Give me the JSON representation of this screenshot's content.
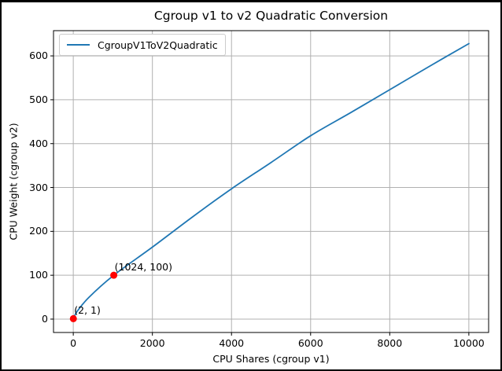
{
  "window": {
    "background": "#ffffff",
    "border_color": "#000000"
  },
  "chart_data": {
    "type": "line",
    "title": "Cgroup v1 to v2 Quadratic Conversion",
    "xlabel": "CPU Shares (cgroup v1)",
    "ylabel": "CPU Weight (cgroup v2)",
    "xlim": [
      -500,
      10500
    ],
    "ylim": [
      -30.5,
      657.5
    ],
    "xticks": [
      0,
      2000,
      4000,
      6000,
      8000,
      10000
    ],
    "yticks": [
      0,
      100,
      200,
      300,
      400,
      500,
      600
    ],
    "grid": true,
    "grid_color": "#b0b0b0",
    "axis_color": "#000000",
    "legend": {
      "position": "upper-left",
      "entries": [
        {
          "label": "CgroupV1ToV2Quadratic",
          "color": "#1f77b4"
        }
      ]
    },
    "series": [
      {
        "name": "CgroupV1ToV2Quadratic",
        "color": "#1f77b4",
        "line_width": 1.8,
        "points": [
          [
            2,
            1
          ],
          [
            100,
            18
          ],
          [
            400,
            50
          ],
          [
            1024,
            100
          ],
          [
            2000,
            164
          ],
          [
            3000,
            232
          ],
          [
            4000,
            297
          ],
          [
            5000,
            357
          ],
          [
            6000,
            418
          ],
          [
            7000,
            470
          ],
          [
            8000,
            523
          ],
          [
            9000,
            576
          ],
          [
            10000,
            628
          ]
        ]
      }
    ],
    "marker_color": "#ff0000",
    "annotations": [
      {
        "label": "(2, 1)",
        "x": 2,
        "y": 1
      },
      {
        "label": "(1024, 100)",
        "x": 1024,
        "y": 100
      }
    ]
  }
}
